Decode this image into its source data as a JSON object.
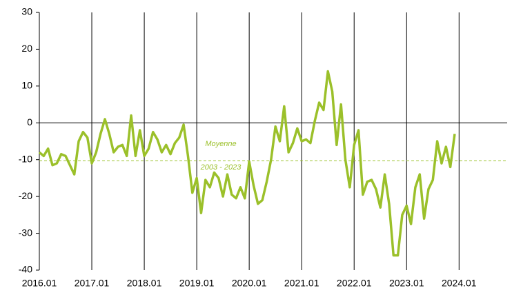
{
  "chart_data": {
    "type": "line",
    "categories": [
      "2016.01",
      null,
      null,
      null,
      null,
      null,
      null,
      null,
      null,
      null,
      null,
      null,
      "2017.01",
      null,
      null,
      null,
      null,
      null,
      null,
      null,
      null,
      null,
      null,
      null,
      "2018.01",
      null,
      null,
      null,
      null,
      null,
      null,
      null,
      null,
      null,
      null,
      null,
      "2019.01",
      null,
      null,
      null,
      null,
      null,
      null,
      null,
      null,
      null,
      null,
      null,
      "2020.01",
      null,
      null,
      null,
      null,
      null,
      null,
      null,
      null,
      null,
      null,
      null,
      "2021.01",
      null,
      null,
      null,
      null,
      null,
      null,
      null,
      null,
      null,
      null,
      null,
      "2022.01",
      null,
      null,
      null,
      null,
      null,
      null,
      null,
      null,
      null,
      null,
      null,
      "2023.01",
      null,
      null,
      null,
      null,
      null,
      null,
      null,
      null,
      null,
      null,
      null,
      "2024.01",
      null,
      null,
      null,
      null,
      null,
      null,
      null,
      null,
      null,
      null,
      null
    ],
    "values": [
      -8,
      -9,
      -7,
      -11.5,
      -11,
      -8.5,
      -9,
      -11.5,
      -14,
      -5,
      -2.5,
      -4,
      -11,
      -8,
      -3,
      1,
      -3,
      -8,
      -6.5,
      -6,
      -9,
      2,
      -9,
      -2,
      -9,
      -7,
      -2.5,
      -4.5,
      -8,
      -6,
      -8.5,
      -5.5,
      -4,
      -0.5,
      -9,
      -19,
      -15,
      -24.5,
      -15.5,
      -17.5,
      -13.5,
      -15,
      -20,
      -14,
      -19.5,
      -20.5,
      -17.5,
      -20.5,
      -10.5,
      -17,
      -22,
      -21,
      -16,
      -10,
      -1,
      -5,
      4.5,
      -8,
      -5.5,
      -1.5,
      -5,
      -4.5,
      -5.5,
      0.5,
      5.5,
      3.5,
      14,
      8.5,
      -6,
      5,
      -10,
      -17.5,
      -6,
      -2,
      -19.5,
      -16,
      -15.5,
      -18,
      -23,
      -14,
      -22,
      -36,
      -36,
      -25,
      -22.5,
      -27.5,
      -17.5,
      -14,
      -26,
      -18,
      -15.5,
      -5,
      -11,
      -6.5,
      -12,
      -3,
      null,
      null,
      null,
      null,
      null,
      null,
      null,
      null,
      null,
      null,
      null,
      null
    ],
    "color": "#9bc02a",
    "ylim": [
      -40,
      30
    ],
    "yticks": [
      -40,
      -30,
      -20,
      -10,
      0,
      10,
      20,
      30
    ],
    "grid": "x",
    "mean_line": -10.3,
    "annotations": [
      "Moyenne",
      "2003 - 2023"
    ]
  }
}
